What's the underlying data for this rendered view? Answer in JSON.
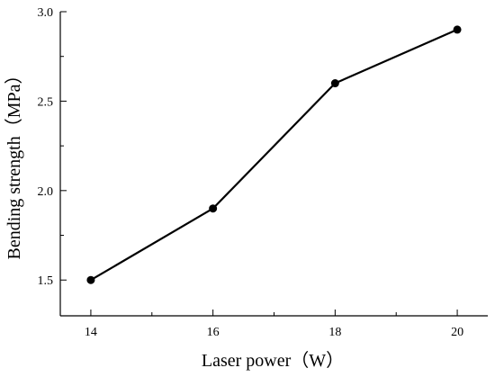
{
  "chart_data": {
    "type": "line",
    "title": "",
    "xlabel": "Laser power（W）",
    "ylabel": "Bending strength（MPa）",
    "x": [
      14,
      16,
      18,
      20
    ],
    "series": [
      {
        "values": [
          1.5,
          1.9,
          2.6,
          2.9
        ]
      }
    ],
    "xticks": [
      "14",
      "16",
      "18",
      "20"
    ],
    "yticks": [
      "1.5",
      "2.0",
      "2.5",
      "3.0"
    ],
    "xlim": [
      13.5,
      20.5
    ],
    "ylim": [
      1.3,
      3.0
    ],
    "grid": false,
    "legend": "none",
    "color": "#000000"
  }
}
